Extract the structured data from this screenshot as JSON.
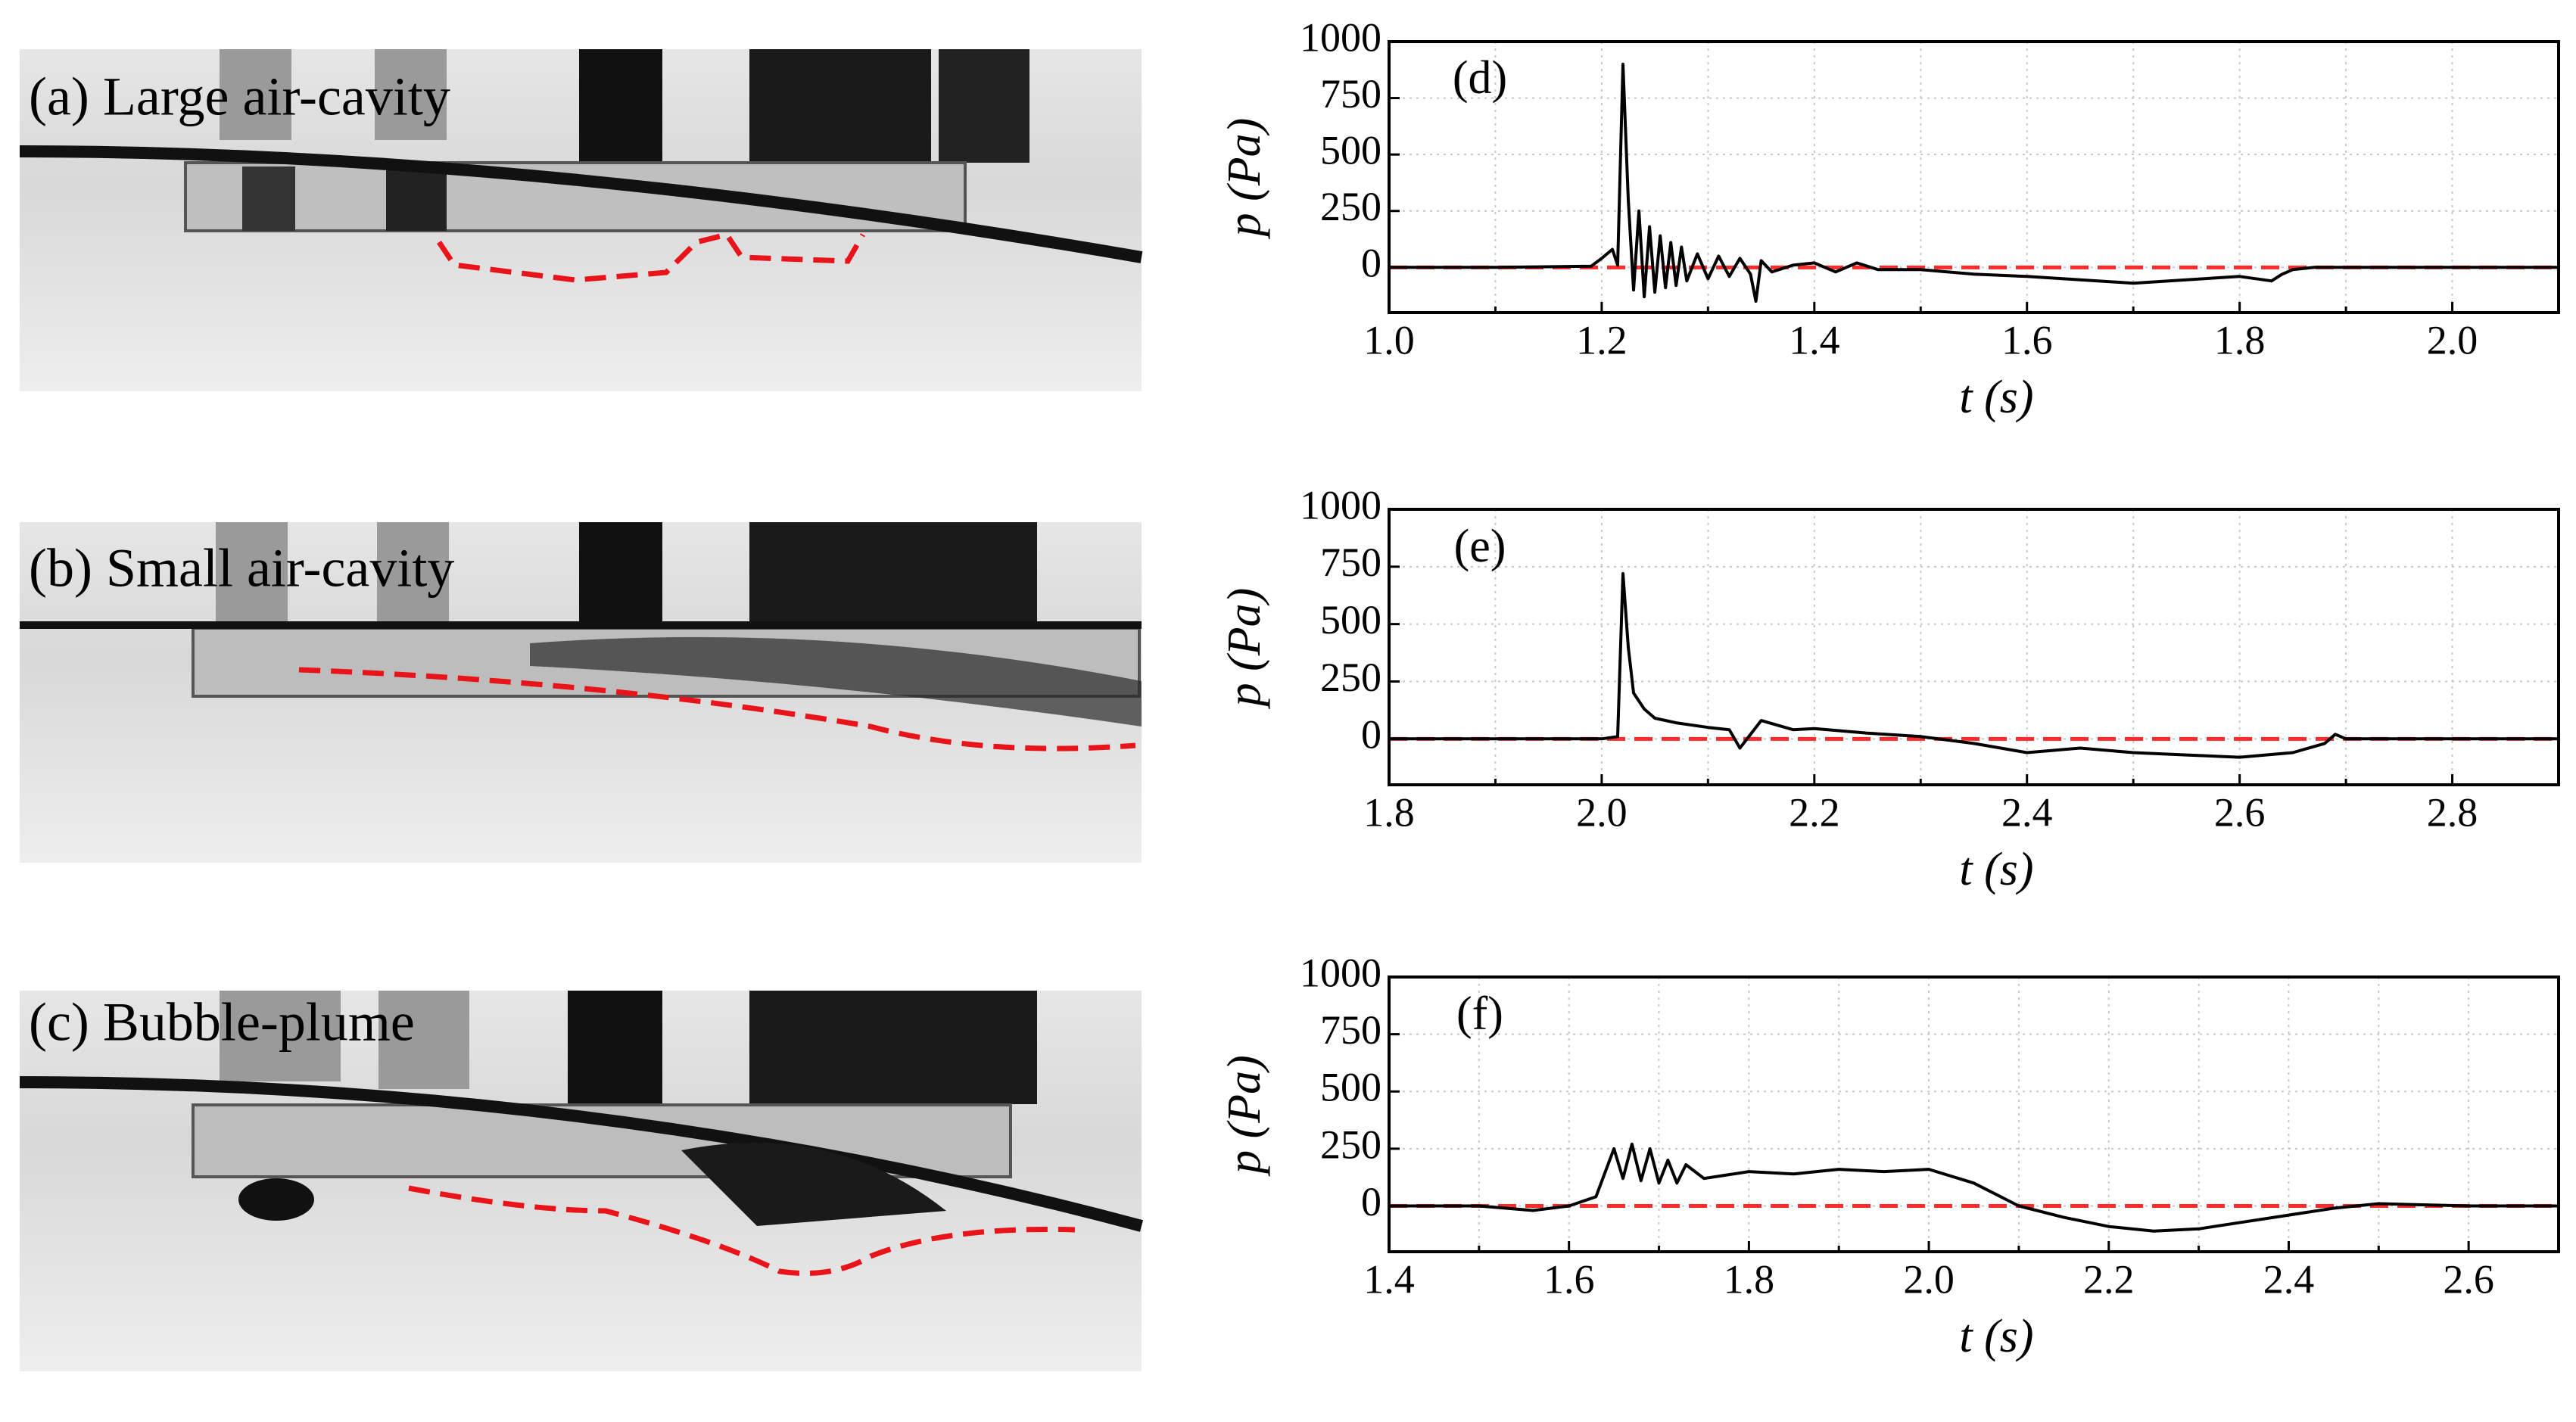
{
  "photos": [
    {
      "label": "(a) Large air-cavity"
    },
    {
      "label": "(b) Small air-cavity"
    },
    {
      "label": "(c) Bubble-plume"
    }
  ],
  "chart_data": [
    {
      "type": "line",
      "annotation": "(d)",
      "xlabel": "t (s)",
      "ylabel": "p (Pa)",
      "color": "#000000",
      "hline": {
        "value": 0,
        "color": "#ff2a2a"
      },
      "xlim": [
        1.0,
        2.1
      ],
      "ylim": [
        -200,
        1000
      ],
      "xticks": [
        {
          "value": 1.0,
          "label": "1.0"
        },
        1.2,
        1.4,
        1.6,
        1.8,
        {
          "value": 2.0,
          "label": "2.0"
        }
      ],
      "xminor": [
        1.1,
        1.3,
        1.5,
        1.7,
        1.9,
        2.1
      ],
      "yticks": [
        0,
        250,
        500,
        750,
        1000
      ],
      "grid": true,
      "x": [
        1.0,
        1.1,
        1.19,
        1.2,
        1.21,
        1.215,
        1.22,
        1.225,
        1.23,
        1.235,
        1.24,
        1.245,
        1.25,
        1.255,
        1.26,
        1.265,
        1.27,
        1.275,
        1.28,
        1.29,
        1.3,
        1.31,
        1.32,
        1.33,
        1.34,
        1.345,
        1.35,
        1.36,
        1.38,
        1.4,
        1.42,
        1.44,
        1.46,
        1.5,
        1.55,
        1.6,
        1.65,
        1.7,
        1.75,
        1.8,
        1.83,
        1.84,
        1.85,
        1.87,
        1.9,
        2.0,
        2.1
      ],
      "values": [
        0,
        0,
        5,
        40,
        80,
        10,
        900,
        300,
        -100,
        250,
        -130,
        180,
        -110,
        140,
        -90,
        110,
        -80,
        90,
        -60,
        60,
        -50,
        50,
        -40,
        40,
        -30,
        -150,
        30,
        -20,
        10,
        20,
        -20,
        20,
        -10,
        -10,
        -30,
        -40,
        -55,
        -70,
        -55,
        -40,
        -60,
        -30,
        -10,
        0,
        0,
        0,
        0
      ]
    },
    {
      "type": "line",
      "annotation": "(e)",
      "xlabel": "t (s)",
      "ylabel": "p (Pa)",
      "color": "#000000",
      "hline": {
        "value": 0,
        "color": "#ff2a2a"
      },
      "xlim": [
        1.8,
        2.9
      ],
      "ylim": [
        -200,
        1000
      ],
      "xticks": [
        1.8,
        {
          "value": 2.0,
          "label": "2.0"
        },
        2.2,
        2.4,
        2.6,
        2.8
      ],
      "xminor": [
        1.9,
        2.1,
        2.3,
        2.5,
        2.7,
        2.9
      ],
      "yticks": [
        0,
        250,
        500,
        750,
        1000
      ],
      "grid": true,
      "x": [
        1.8,
        1.9,
        2.0,
        2.015,
        2.02,
        2.025,
        2.03,
        2.04,
        2.05,
        2.07,
        2.1,
        2.12,
        2.13,
        2.15,
        2.18,
        2.2,
        2.25,
        2.3,
        2.35,
        2.4,
        2.45,
        2.5,
        2.55,
        2.6,
        2.65,
        2.68,
        2.69,
        2.7,
        2.75,
        2.8,
        2.9
      ],
      "values": [
        0,
        0,
        0,
        10,
        720,
        400,
        200,
        130,
        90,
        70,
        50,
        40,
        -40,
        80,
        40,
        45,
        25,
        10,
        -20,
        -60,
        -40,
        -60,
        -70,
        -80,
        -60,
        -20,
        20,
        0,
        0,
        0,
        0
      ]
    },
    {
      "type": "line",
      "annotation": "(f)",
      "xlabel": "t (s)",
      "ylabel": "p (Pa)",
      "color": "#000000",
      "hline": {
        "value": 0,
        "color": "#ff2a2a"
      },
      "xlim": [
        1.4,
        2.7
      ],
      "ylim": [
        -200,
        1000
      ],
      "xticks": [
        1.4,
        1.6,
        1.8,
        {
          "value": 2.0,
          "label": "2.0"
        },
        2.2,
        2.4,
        2.6
      ],
      "xminor": [
        1.5,
        1.7,
        1.9,
        2.1,
        2.3,
        2.5,
        2.7
      ],
      "yticks": [
        0,
        250,
        500,
        750,
        1000
      ],
      "grid": true,
      "x": [
        1.4,
        1.5,
        1.56,
        1.6,
        1.63,
        1.65,
        1.66,
        1.67,
        1.68,
        1.69,
        1.7,
        1.71,
        1.72,
        1.73,
        1.75,
        1.8,
        1.85,
        1.9,
        1.95,
        2.0,
        2.05,
        2.1,
        2.15,
        2.2,
        2.25,
        2.3,
        2.35,
        2.4,
        2.45,
        2.5,
        2.6,
        2.7
      ],
      "values": [
        0,
        0,
        -20,
        0,
        40,
        250,
        120,
        270,
        110,
        250,
        100,
        200,
        100,
        180,
        120,
        150,
        140,
        160,
        150,
        160,
        100,
        0,
        -50,
        -90,
        -110,
        -100,
        -70,
        -40,
        -10,
        10,
        0,
        0
      ]
    }
  ]
}
